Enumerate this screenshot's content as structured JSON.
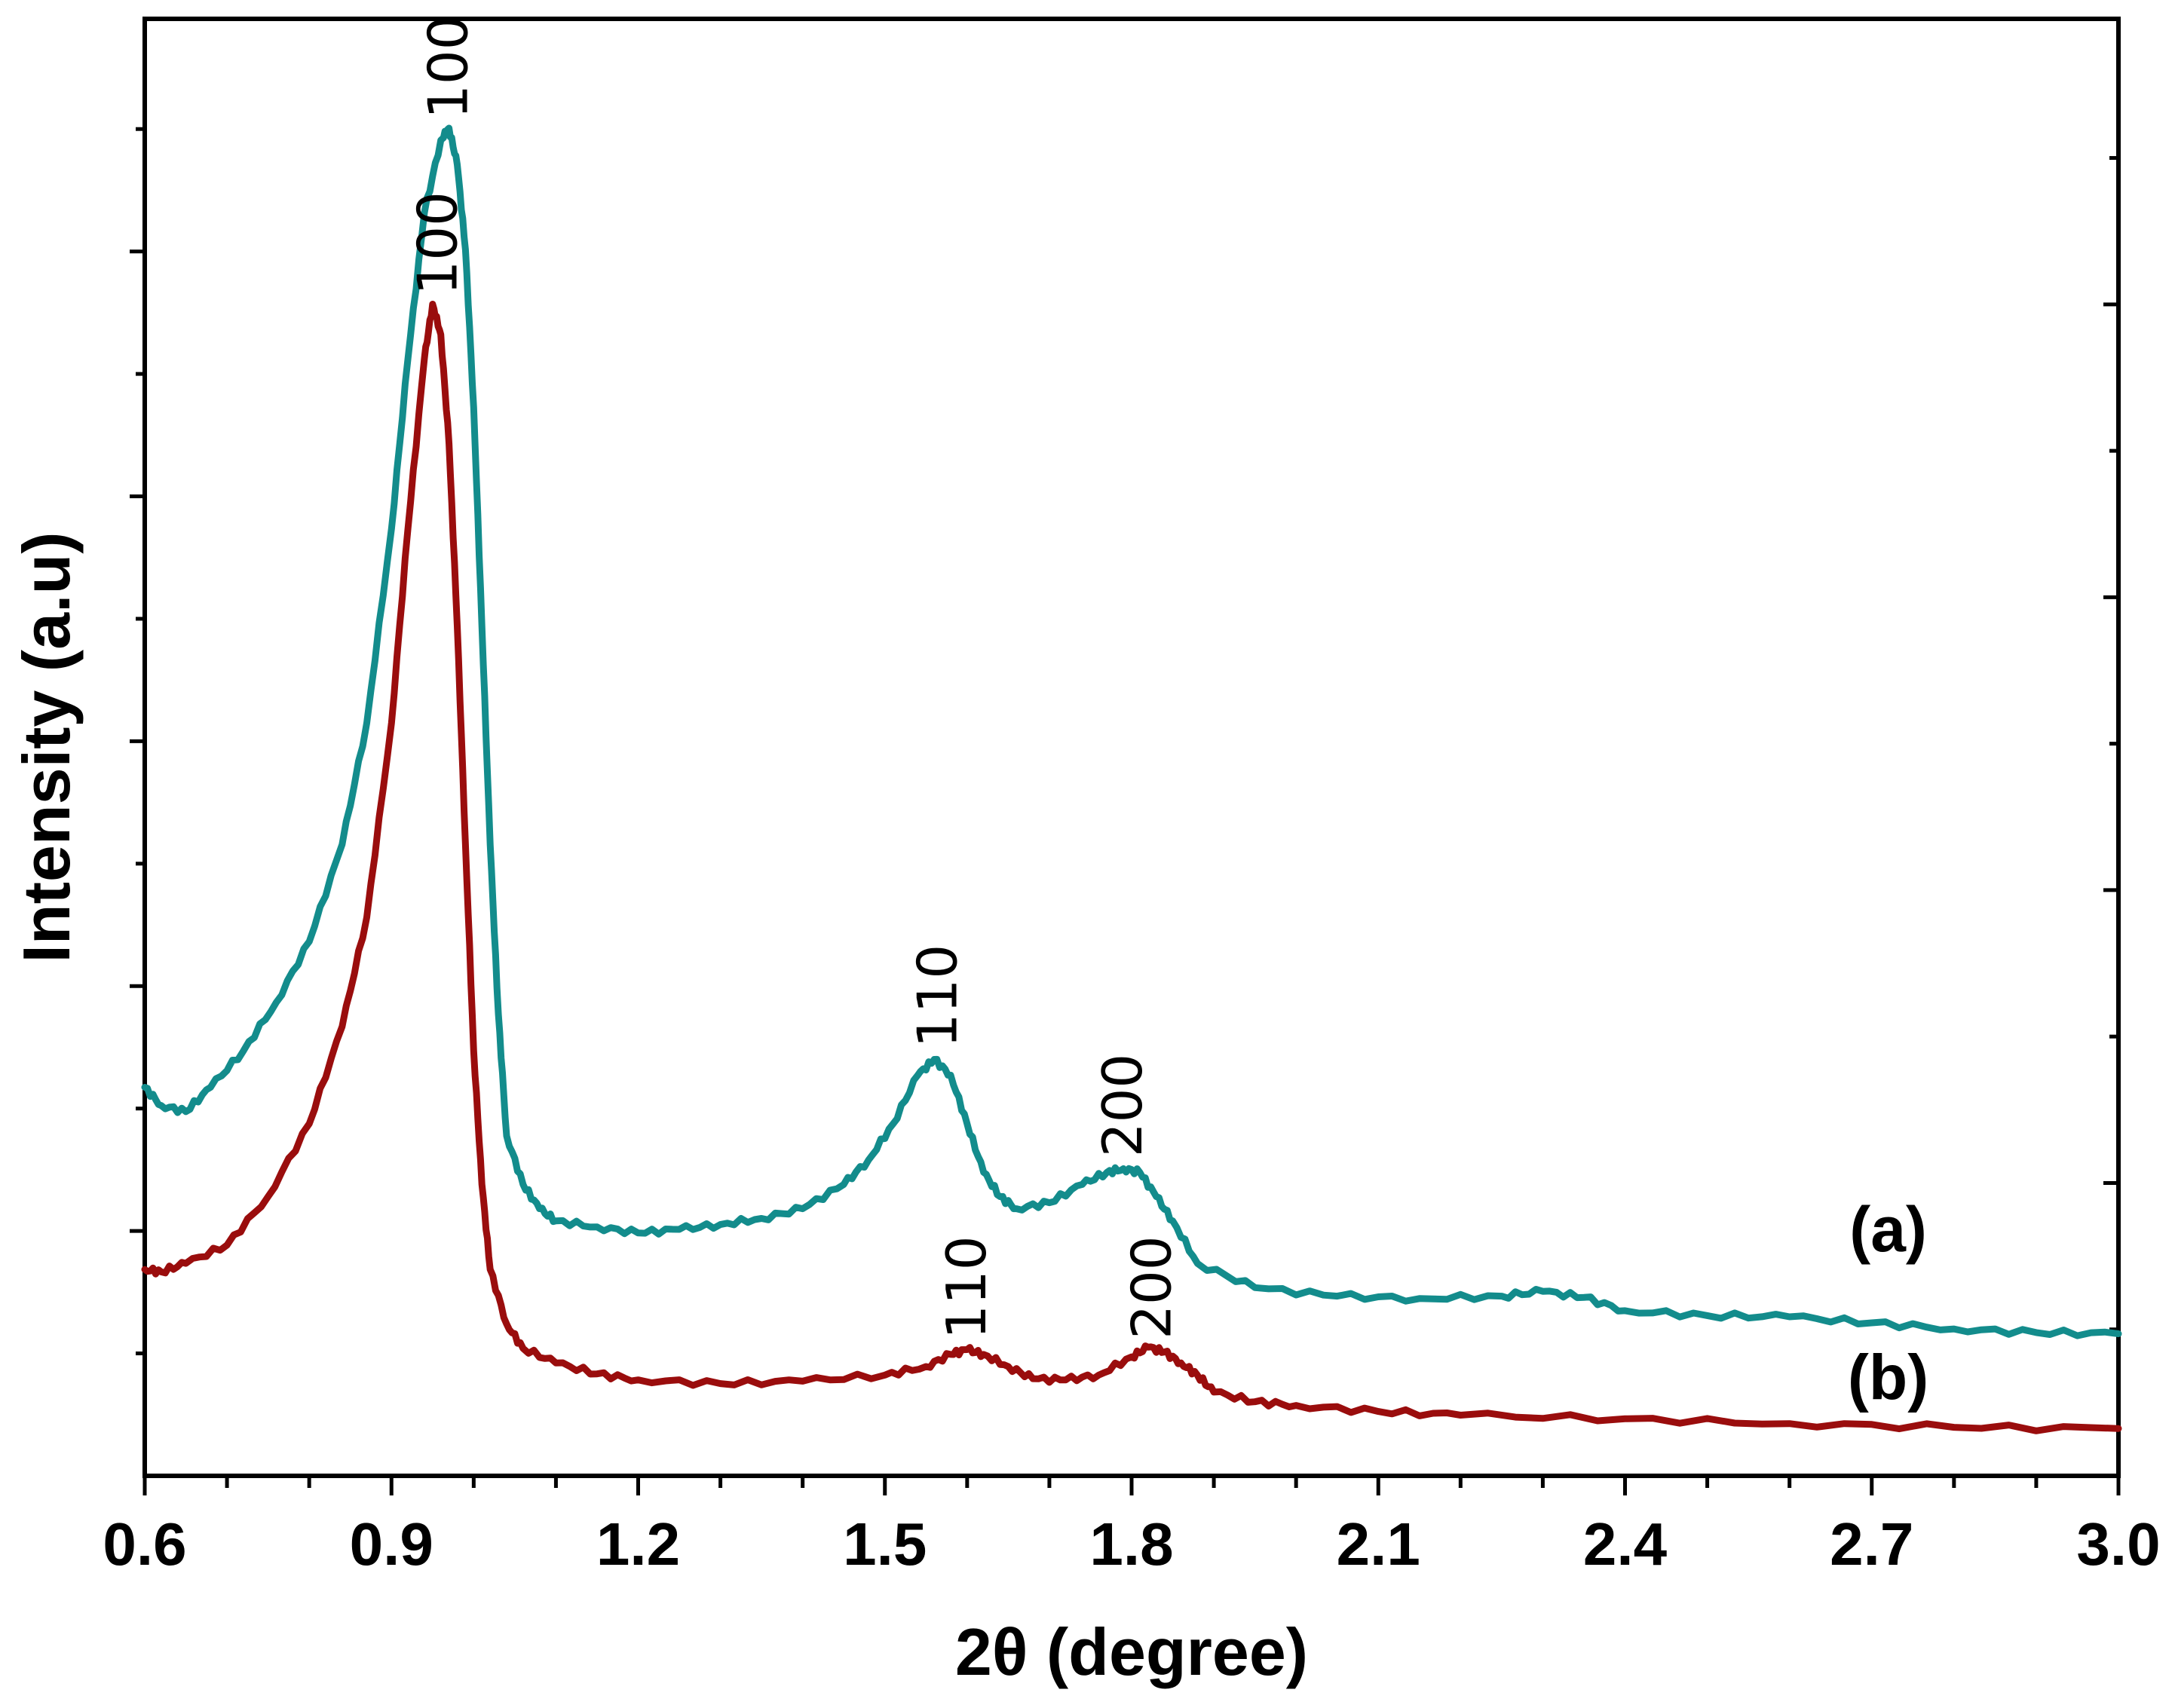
{
  "chart_data": {
    "type": "line",
    "title": "",
    "xlabel": "2θ (degree)",
    "ylabel": "Intensity (a.u)",
    "xlim": [
      0.6,
      3.0
    ],
    "ylim": [
      0,
      120
    ],
    "xticks": [
      "0.6",
      "0.9",
      "1.2",
      "1.5",
      "1.8",
      "2.1",
      "2.4",
      "2.7",
      "3.0"
    ],
    "grid": false,
    "series": [
      {
        "name": "(a)",
        "color": "#138c8c",
        "x": [
          0.6,
          0.62,
          0.65,
          0.68,
          0.72,
          0.76,
          0.8,
          0.84,
          0.87,
          0.9,
          0.92,
          0.94,
          0.96,
          0.97,
          0.98,
          0.99,
          1.0,
          1.01,
          1.02,
          1.03,
          1.04,
          1.06,
          1.08,
          1.1,
          1.15,
          1.2,
          1.25,
          1.3,
          1.35,
          1.4,
          1.45,
          1.48,
          1.51,
          1.54,
          1.56,
          1.58,
          1.6,
          1.62,
          1.64,
          1.66,
          1.7,
          1.74,
          1.77,
          1.79,
          1.81,
          1.83,
          1.85,
          1.88,
          1.95,
          2.05,
          2.15,
          2.25,
          2.3,
          2.35,
          2.4,
          2.5,
          2.6,
          2.7,
          2.8,
          2.9,
          3.0
        ],
        "y": [
          32,
          30.5,
          30,
          32,
          35,
          39,
          44,
          52,
          62,
          78,
          92,
          104,
          110,
          111,
          108,
          101,
          88,
          70,
          52,
          38,
          28,
          24,
          22,
          21,
          20.5,
          20,
          20.3,
          20.7,
          21.2,
          22,
          24,
          26,
          29,
          33,
          34.3,
          33,
          29,
          25,
          23,
          22,
          22.5,
          24,
          25,
          25.3,
          25,
          23,
          21,
          17.5,
          15.5,
          14.8,
          14.6,
          14.8,
          15.2,
          14.7,
          13.6,
          13.2,
          13.1,
          12.6,
          12.1,
          11.8,
          11.7
        ],
        "label_pos": [
          2.72,
          18.5
        ]
      },
      {
        "name": "(b)",
        "color": "#9a0d0d",
        "x": [
          0.6,
          0.62,
          0.65,
          0.7,
          0.75,
          0.8,
          0.84,
          0.87,
          0.9,
          0.92,
          0.94,
          0.95,
          0.96,
          0.97,
          0.98,
          0.99,
          1.0,
          1.01,
          1.02,
          1.04,
          1.06,
          1.1,
          1.15,
          1.2,
          1.3,
          1.4,
          1.5,
          1.55,
          1.58,
          1.6,
          1.62,
          1.65,
          1.68,
          1.72,
          1.76,
          1.8,
          1.82,
          1.84,
          1.86,
          1.88,
          1.9,
          1.95,
          2.0,
          2.1,
          2.2,
          2.4,
          2.6,
          2.8,
          3.0
        ],
        "y": [
          17,
          16.8,
          17.5,
          19,
          23,
          29,
          37,
          46,
          62,
          78,
          92,
          96.5,
          94,
          85,
          70,
          52,
          35,
          24,
          17,
          12.5,
          10.5,
          9.3,
          8.4,
          7.9,
          7.6,
          7.8,
          8.3,
          9,
          10,
          10.4,
          10,
          9,
          8,
          7.9,
          8.3,
          9.8,
          10.6,
          10.2,
          9.3,
          8.3,
          6.9,
          6.1,
          5.8,
          5.3,
          5.0,
          4.7,
          4.3,
          4.0,
          3.9
        ],
        "label_pos": [
          2.72,
          6.3
        ]
      }
    ],
    "annotations": [
      {
        "text": "100",
        "x": 0.97,
        "y": 111.5
      },
      {
        "text": "110",
        "x": 1.565,
        "y": 35.0
      },
      {
        "text": "200",
        "x": 1.79,
        "y": 26.0
      },
      {
        "text": "100",
        "x": 0.957,
        "y": 97.0
      },
      {
        "text": "110",
        "x": 1.6,
        "y": 11.0
      },
      {
        "text": "200",
        "x": 1.825,
        "y": 11.0
      }
    ]
  }
}
